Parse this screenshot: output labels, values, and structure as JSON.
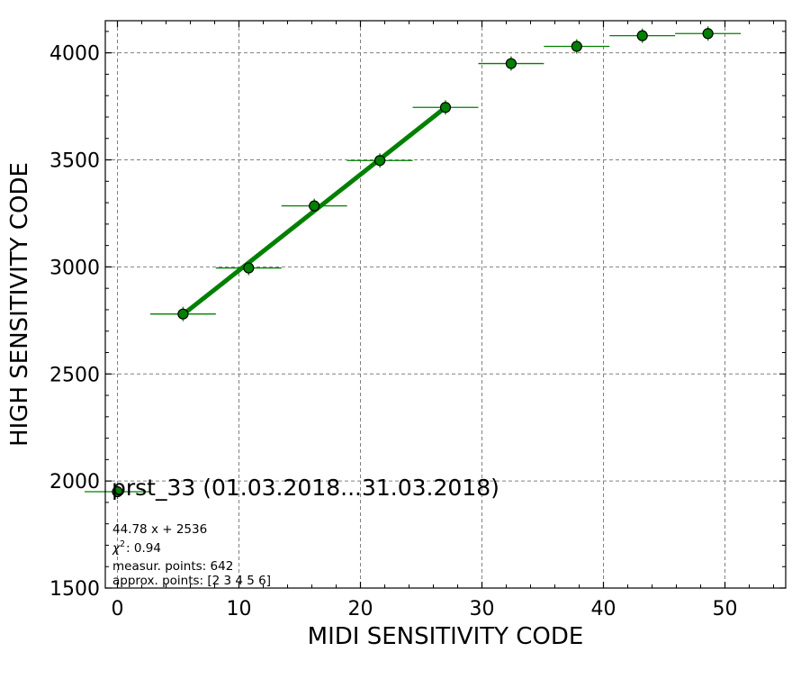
{
  "chart_data": {
    "type": "scatter",
    "title": "",
    "xlabel": "MIDI SENSITIVITY CODE",
    "ylabel": "HIGH SENSITIVITY CODE",
    "xlim": [
      -1,
      55
    ],
    "ylim": [
      1500,
      4150
    ],
    "xticks": [
      0,
      10,
      20,
      30,
      40,
      50
    ],
    "yticks": [
      1500,
      2000,
      2500,
      3000,
      3500,
      4000
    ],
    "xtick_labels": [
      "0",
      "10",
      "20",
      "30",
      "40",
      "50"
    ],
    "ytick_labels": [
      "1500",
      "2000",
      "2500",
      "3000",
      "3500",
      "4000"
    ],
    "x_minor_step": 2,
    "y_minor_step": 100,
    "grid": true,
    "points": [
      {
        "x": 0.0,
        "y": 1950,
        "xerr": 2.7
      },
      {
        "x": 5.4,
        "y": 2780,
        "xerr": 2.7
      },
      {
        "x": 10.8,
        "y": 2995,
        "xerr": 2.7
      },
      {
        "x": 16.2,
        "y": 3285,
        "xerr": 2.7
      },
      {
        "x": 21.6,
        "y": 3497,
        "xerr": 2.7
      },
      {
        "x": 27.0,
        "y": 3745,
        "xerr": 2.7
      },
      {
        "x": 32.4,
        "y": 3950,
        "xerr": 2.7
      },
      {
        "x": 37.8,
        "y": 4030,
        "xerr": 2.7
      },
      {
        "x": 43.2,
        "y": 4080,
        "xerr": 2.7
      },
      {
        "x": 48.6,
        "y": 4090,
        "xerr": 2.7
      }
    ],
    "fit": {
      "slope": 44.78,
      "intercept": 2536,
      "x_range": [
        5.4,
        27.0
      ]
    },
    "colors": {
      "points": "#008000",
      "fit_line": "#008000",
      "grid": "#808080"
    }
  },
  "annotations": {
    "device": "prst_33 (01.03.2018...31.03.2018)",
    "fit_equation": "44.78 x + 2536",
    "chi2_symbol": "χ",
    "chi2_power": "2",
    "chi2_value": ": 0.94",
    "measur_points": "measur. points: 642",
    "approx_points": "approx. points: [2 3 4 5 6]"
  }
}
